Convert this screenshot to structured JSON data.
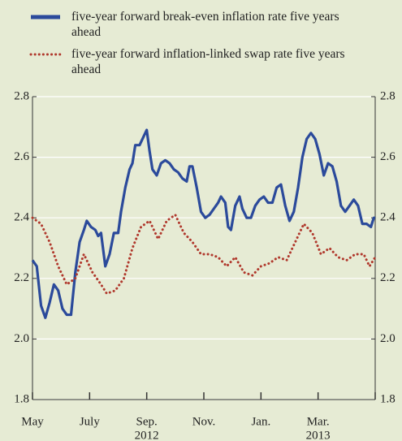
{
  "chart_data": {
    "type": "line",
    "series": [
      {
        "name": "five-year forward break-even inflation rate five years ahead",
        "color": "#2b4a9b",
        "style": "solid",
        "x": [
          0,
          0.15,
          0.3,
          0.45,
          0.6,
          0.75,
          0.9,
          1.05,
          1.2,
          1.35,
          1.5,
          1.65,
          1.8,
          1.9,
          2.05,
          2.2,
          2.3,
          2.4,
          2.55,
          2.7,
          2.85,
          3.0,
          3.1,
          3.25,
          3.4,
          3.5,
          3.6,
          3.75,
          3.9,
          4.0,
          4.1,
          4.2,
          4.35,
          4.5,
          4.65,
          4.8,
          4.95,
          5.1,
          5.25,
          5.4,
          5.5,
          5.6,
          5.75,
          5.9,
          6.05,
          6.2,
          6.35,
          6.5,
          6.6,
          6.75,
          6.85,
          6.95,
          7.1,
          7.25,
          7.35,
          7.5,
          7.65,
          7.8,
          7.95,
          8.1,
          8.25,
          8.4,
          8.55,
          8.7,
          8.85,
          9.0,
          9.15,
          9.3,
          9.45,
          9.6,
          9.75,
          9.9,
          10.05,
          10.2,
          10.35,
          10.5,
          10.65,
          10.8,
          10.95,
          11.1,
          11.25,
          11.4,
          11.55,
          11.7,
          11.85,
          11.95,
          12.0
        ],
        "values": [
          2.26,
          2.24,
          2.11,
          2.07,
          2.12,
          2.18,
          2.16,
          2.1,
          2.08,
          2.08,
          2.22,
          2.32,
          2.36,
          2.39,
          2.37,
          2.36,
          2.34,
          2.35,
          2.24,
          2.28,
          2.35,
          2.35,
          2.42,
          2.5,
          2.56,
          2.58,
          2.64,
          2.64,
          2.67,
          2.69,
          2.62,
          2.56,
          2.54,
          2.58,
          2.59,
          2.58,
          2.56,
          2.55,
          2.53,
          2.52,
          2.57,
          2.57,
          2.5,
          2.42,
          2.4,
          2.41,
          2.43,
          2.45,
          2.47,
          2.45,
          2.37,
          2.36,
          2.44,
          2.47,
          2.43,
          2.4,
          2.4,
          2.44,
          2.46,
          2.47,
          2.45,
          2.45,
          2.5,
          2.51,
          2.44,
          2.39,
          2.42,
          2.5,
          2.6,
          2.66,
          2.68,
          2.66,
          2.61,
          2.54,
          2.58,
          2.57,
          2.52,
          2.44,
          2.42,
          2.44,
          2.46,
          2.44,
          2.38,
          2.38,
          2.37,
          2.4,
          2.4
        ]
      },
      {
        "name": "five-year forward inflation-linked swap rate five years ahead",
        "color": "#b0382c",
        "style": "dotted",
        "x": [
          0,
          0.3,
          0.6,
          0.9,
          1.2,
          1.5,
          1.8,
          2.1,
          2.4,
          2.6,
          2.9,
          3.2,
          3.5,
          3.8,
          4.1,
          4.4,
          4.7,
          5.0,
          5.3,
          5.6,
          5.9,
          6.2,
          6.5,
          6.8,
          7.1,
          7.4,
          7.7,
          8.0,
          8.3,
          8.6,
          8.9,
          9.2,
          9.5,
          9.8,
          10.1,
          10.4,
          10.7,
          11.0,
          11.3,
          11.6,
          11.8,
          12.0
        ],
        "values": [
          2.4,
          2.38,
          2.32,
          2.24,
          2.18,
          2.2,
          2.28,
          2.22,
          2.18,
          2.15,
          2.16,
          2.2,
          2.3,
          2.37,
          2.39,
          2.33,
          2.39,
          2.41,
          2.35,
          2.32,
          2.28,
          2.28,
          2.27,
          2.24,
          2.27,
          2.22,
          2.21,
          2.24,
          2.25,
          2.27,
          2.26,
          2.32,
          2.38,
          2.35,
          2.28,
          2.3,
          2.27,
          2.26,
          2.28,
          2.28,
          2.24,
          2.27
        ]
      }
    ],
    "xlim": [
      0,
      12
    ],
    "xticks": [
      {
        "value": 0,
        "label": "May"
      },
      {
        "value": 2,
        "label": "July"
      },
      {
        "value": 4,
        "label": "Sep."
      },
      {
        "value": 6,
        "label": "Nov."
      },
      {
        "value": 8,
        "label": "Jan."
      },
      {
        "value": 10,
        "label": "Mar."
      },
      {
        "value": 12,
        "label": ""
      }
    ],
    "xtick_years": [
      {
        "value": 4,
        "label": "2012"
      },
      {
        "value": 10,
        "label": "2013"
      }
    ],
    "ylim": [
      1.8,
      2.8
    ],
    "yticks": [
      {
        "value": 1.8,
        "label": "1.8"
      },
      {
        "value": 2.0,
        "label": "2.0"
      },
      {
        "value": 2.2,
        "label": "2.2"
      },
      {
        "value": 2.4,
        "label": "2.4"
      },
      {
        "value": 2.6,
        "label": "2.6"
      },
      {
        "value": 2.8,
        "label": "2.8"
      }
    ],
    "grid": true
  }
}
